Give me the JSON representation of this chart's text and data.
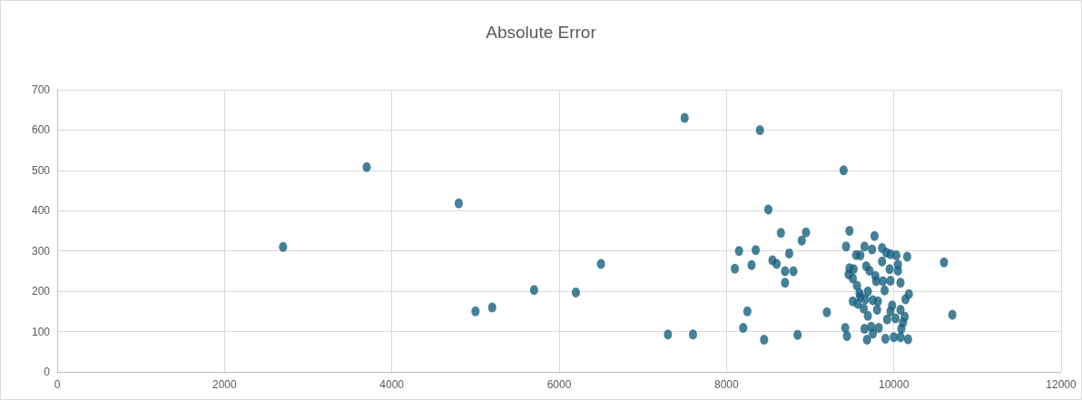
{
  "chart_data": {
    "type": "scatter",
    "title": "Absolute Error",
    "marker": "circle",
    "grid": true,
    "xlim": [
      0,
      12000
    ],
    "xticks": [
      0,
      2000,
      4000,
      6000,
      8000,
      10000,
      12000
    ],
    "ylim": [
      0,
      700
    ],
    "yticks": [
      0,
      100,
      200,
      300,
      400,
      500,
      600,
      700
    ],
    "x": [
      2700,
      3700,
      4800,
      5000,
      5200,
      5700,
      6200,
      6500,
      7300,
      7600,
      7500,
      8400,
      9400,
      8500,
      8950,
      8900,
      8650,
      8750,
      8150,
      8350,
      8100,
      8300,
      8550,
      8600,
      8700,
      8800,
      8700,
      8250,
      8200,
      8450,
      8850,
      9200,
      10600,
      10700,
      9470,
      9770,
      9430,
      9650,
      9740,
      9550,
      9600,
      9860,
      9910,
      9960,
      10030,
      10160,
      9860,
      10050,
      10050,
      9950,
      9670,
      9710,
      9470,
      9520,
      9460,
      9510,
      9780,
      9790,
      9870,
      9960,
      10080,
      9890,
      9560,
      9590,
      9600,
      9690,
      10180,
      10140,
      9750,
      9810,
      9510,
      9570,
      9660,
      9980,
      9640,
      10080,
      9800,
      9960,
      9690,
      10130,
      9920,
      10110,
      9420,
      9730,
      9650,
      9820,
      10090,
      9440,
      9680,
      9750,
      9900,
      10000,
      10080,
      10170,
      10020
    ],
    "values": [
      310,
      508,
      418,
      150,
      160,
      203,
      197,
      268,
      93,
      93,
      630,
      600,
      500,
      403,
      346,
      326,
      345,
      294,
      300,
      302,
      256,
      265,
      277,
      268,
      250,
      250,
      221,
      150,
      109,
      80,
      92,
      148,
      272,
      142,
      350,
      337,
      311,
      311,
      304,
      290,
      289,
      307,
      296,
      292,
      289,
      286,
      274,
      266,
      251,
      255,
      262,
      251,
      257,
      255,
      242,
      232,
      238,
      225,
      225,
      226,
      221,
      202,
      214,
      195,
      187,
      200,
      193,
      180,
      178,
      175,
      175,
      169,
      180,
      165,
      157,
      154,
      154,
      150,
      139,
      137,
      130,
      122,
      109,
      112,
      107,
      109,
      107,
      89,
      80,
      95,
      82,
      86,
      86,
      81,
      133
    ],
    "color": "#17607f"
  }
}
